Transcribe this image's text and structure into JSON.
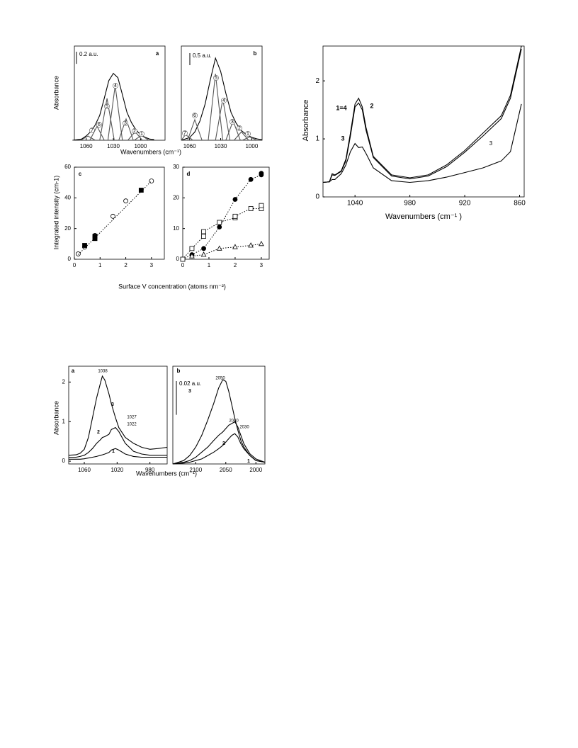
{
  "chart_data": [
    {
      "type": "line",
      "title": "a",
      "xlabel": "Wavenumbers (cm⁻¹)",
      "ylabel": "Absorbance",
      "scale_bar": {
        "value": 0.2,
        "label": "0.2 a.u."
      },
      "xlim": [
        1073,
        973
      ],
      "ylim": [
        0,
        1.55
      ],
      "xticks": [
        1060,
        1030,
        1000
      ],
      "series": [
        {
          "color": "#000000",
          "x": [
            1075,
            1065,
            1060,
            1055,
            1050,
            1045,
            1040,
            1035,
            1030,
            1025,
            1020,
            1015,
            1010,
            1005,
            1000,
            995,
            990,
            985
          ],
          "values": [
            0,
            0.02,
            0.07,
            0.14,
            0.25,
            0.41,
            0.69,
            0.98,
            1.1,
            1.03,
            0.75,
            0.46,
            0.29,
            0.17,
            0.09,
            0.05,
            0.02,
            0.01
          ]
        },
        {
          "name": "7",
          "color": "#555555",
          "x": [
            1066,
            1062,
            1058,
            1054,
            1050
          ],
          "values": [
            0,
            0.035,
            0.07,
            0.035,
            0
          ]
        },
        {
          "name": "6",
          "color": "#555555",
          "x": [
            1056,
            1052,
            1048,
            1044,
            1040
          ],
          "values": [
            0,
            0.115,
            0.23,
            0.115,
            0
          ]
        },
        {
          "name": "5",
          "color": "#555555",
          "x": [
            1045,
            1041,
            1037,
            1033,
            1029
          ],
          "values": [
            0,
            0.345,
            0.69,
            0.345,
            0
          ]
        },
        {
          "name": "4",
          "color": "#555555",
          "x": [
            1036,
            1032,
            1028,
            1024,
            1020
          ],
          "values": [
            0,
            0.45,
            0.9,
            0.45,
            0
          ]
        },
        {
          "name": "3",
          "color": "#555555",
          "x": [
            1024,
            1020,
            1016,
            1012,
            1008
          ],
          "values": [
            0,
            0.175,
            0.35,
            0.175,
            0
          ]
        },
        {
          "name": "2",
          "color": "#555555",
          "x": [
            1014,
            1010,
            1006,
            1002,
            998
          ],
          "values": [
            0,
            0.07,
            0.14,
            0.07,
            0
          ]
        },
        {
          "name": "1",
          "color": "#555555",
          "x": [
            1007,
            1003,
            999,
            995,
            991
          ],
          "values": [
            0,
            0.04,
            0.08,
            0.04,
            0
          ]
        }
      ]
    },
    {
      "type": "line",
      "title": "b",
      "scale_bar": {
        "value": 0.5,
        "label": "0.5 a.u."
      },
      "xlim": [
        1068,
        990
      ],
      "ylim": [
        0,
        3.9
      ],
      "xticks": [
        1060,
        1030,
        1000
      ],
      "series": [
        {
          "color": "#000000",
          "x": [
            1068,
            1060,
            1055,
            1050,
            1045,
            1040,
            1035,
            1030,
            1025,
            1020,
            1015,
            1010,
            1005,
            1000,
            995,
            990
          ],
          "values": [
            0,
            0.11,
            0.34,
            0.8,
            1.5,
            2.5,
            3.4,
            2.85,
            1.95,
            1.15,
            0.7,
            0.4,
            0.23,
            0.12,
            0.06,
            0.02
          ]
        },
        {
          "name": "7",
          "color": "#555555",
          "x": [
            1068,
            1066,
            1064,
            1060,
            1057
          ],
          "values": [
            0,
            0.115,
            0.23,
            0.115,
            0
          ]
        },
        {
          "name": "6",
          "color": "#555555",
          "x": [
            1062,
            1058.5,
            1055,
            1051.5,
            1048
          ],
          "values": [
            0,
            0.425,
            0.85,
            0.425,
            0
          ]
        },
        {
          "name": "5",
          "color": "#555555",
          "x": [
            1042,
            1038.5,
            1035,
            1031.5,
            1028
          ],
          "values": [
            0,
            1.375,
            2.75,
            1.375,
            0
          ]
        },
        {
          "name": "4",
          "color": "#555555",
          "x": [
            1035,
            1031.5,
            1028,
            1024.5,
            1021
          ],
          "values": [
            0,
            0.85,
            1.7,
            0.85,
            0
          ]
        },
        {
          "name": "3",
          "color": "#555555",
          "x": [
            1025,
            1021.5,
            1018,
            1014.5,
            1011
          ],
          "values": [
            0,
            0.4,
            0.8,
            0.4,
            0
          ]
        },
        {
          "name": "2",
          "color": "#555555",
          "x": [
            1017,
            1013.5,
            1010,
            1006.5,
            1003
          ],
          "values": [
            0,
            0.175,
            0.35,
            0.175,
            0
          ]
        },
        {
          "name": "1",
          "color": "#555555",
          "x": [
            1009,
            1005.5,
            1002,
            998.5,
            995
          ],
          "values": [
            0,
            0.07,
            0.14,
            0.07,
            0
          ]
        }
      ]
    },
    {
      "type": "scatter",
      "title": "c",
      "xlabel": "Surface V concentration (atoms nm⁻²)",
      "ylabel": "Integrated intensity (cm-1)",
      "xlim": [
        0,
        3.5
      ],
      "ylim": [
        0,
        60
      ],
      "xticks": [
        0,
        1,
        2,
        3
      ],
      "yticks": [
        0,
        20,
        40,
        60
      ],
      "series": [
        {
          "color": "#000000",
          "marker": "circle-open",
          "x": [
            0.15,
            0.4,
            0.8,
            1.5,
            2,
            3
          ],
          "values": [
            3.5,
            8,
            15.5,
            28,
            38,
            51
          ]
        },
        {
          "color": "#000000",
          "marker": "square-filled",
          "x": [
            0.4,
            0.8,
            0.8,
            2.6
          ],
          "values": [
            9,
            13.5,
            15,
            45
          ]
        },
        {
          "color": "#000000",
          "line": "dotted",
          "x": [
            0.15,
            3
          ],
          "values": [
            3,
            51
          ]
        }
      ]
    },
    {
      "type": "scatter",
      "title": "d",
      "xlim": [
        0,
        3.3
      ],
      "ylim": [
        0,
        30
      ],
      "xticks": [
        0,
        1,
        2,
        3
      ],
      "yticks": [
        0,
        10,
        20,
        30
      ],
      "series": [
        {
          "color": "#000000",
          "marker": "circle-filled",
          "line": "dotted",
          "x": [
            0,
            0.35,
            0.8,
            1.4,
            2,
            2.6,
            3,
            3
          ],
          "values": [
            0,
            1.5,
            3.5,
            10.5,
            19.5,
            26,
            27.5,
            28
          ]
        },
        {
          "color": "#000000",
          "marker": "square-open",
          "line": "dotted",
          "x": [
            0,
            0.35,
            0.8,
            0.8,
            1.4,
            2,
            2,
            2.6,
            3,
            3
          ],
          "values": [
            0,
            3.5,
            7.5,
            9,
            12,
            13.5,
            14,
            16.5,
            16.5,
            17.5
          ]
        },
        {
          "color": "#000000",
          "marker": "triangle-open",
          "line": "dotted",
          "x": [
            0.35,
            0.8,
            1.4,
            2,
            2.6,
            3
          ],
          "values": [
            1,
            1.5,
            3.5,
            4,
            4.5,
            5
          ]
        }
      ]
    },
    {
      "type": "line",
      "xlabel": "Wavenumbers (cm⁻¹ )",
      "ylabel": "Absorbance",
      "xlim": [
        1075,
        855
      ],
      "ylim": [
        0,
        2.6
      ],
      "xticks": [
        1040,
        980,
        920,
        860
      ],
      "yticks": [
        0,
        1,
        2
      ],
      "annotations": [
        "3"
      ],
      "series": [
        {
          "name": "1=4",
          "color": "#000000",
          "x": [
            1075,
            1068,
            1065,
            1062,
            1055,
            1050,
            1045,
            1040,
            1036,
            1032,
            1028,
            1020,
            1000,
            980,
            960,
            940,
            920,
            900,
            880,
            870,
            858
          ],
          "values": [
            0.25,
            0.26,
            0.4,
            0.38,
            0.45,
            0.65,
            1.1,
            1.6,
            1.7,
            1.55,
            1.2,
            0.7,
            0.38,
            0.33,
            0.38,
            0.55,
            0.8,
            1.1,
            1.4,
            1.75,
            2.6
          ]
        },
        {
          "name": "2",
          "color": "#000000",
          "x": [
            1075,
            1068,
            1065,
            1062,
            1055,
            1050,
            1045,
            1040,
            1036,
            1032,
            1028,
            1020,
            1000,
            980,
            960,
            940,
            920,
            900,
            880,
            870,
            858
          ],
          "values": [
            0.25,
            0.26,
            0.38,
            0.37,
            0.44,
            0.62,
            1.05,
            1.55,
            1.62,
            1.5,
            1.15,
            0.68,
            0.36,
            0.31,
            0.36,
            0.52,
            0.77,
            1.05,
            1.35,
            1.7,
            2.55
          ]
        },
        {
          "name": "3",
          "color": "#000000",
          "x": [
            1075,
            1068,
            1065,
            1062,
            1055,
            1050,
            1045,
            1040,
            1036,
            1032,
            1028,
            1020,
            1000,
            980,
            960,
            940,
            920,
            900,
            880,
            870,
            858
          ],
          "values": [
            0.25,
            0.26,
            0.3,
            0.3,
            0.4,
            0.55,
            0.78,
            0.92,
            0.85,
            0.86,
            0.75,
            0.5,
            0.28,
            0.25,
            0.28,
            0.34,
            0.42,
            0.5,
            0.62,
            0.78,
            1.6
          ]
        }
      ]
    },
    {
      "type": "line",
      "title": "a",
      "xlabel": "Wavenumbers (cm⁻¹)",
      "ylabel": "Absorbance",
      "xlim": [
        1079,
        959
      ],
      "ylim": [
        -0.07,
        2.4
      ],
      "xticks": [
        1060,
        1020,
        980
      ],
      "yticks": [
        0,
        1,
        2
      ],
      "annotations": [
        "1038",
        "1027",
        "1022"
      ],
      "series": [
        {
          "name": "3",
          "color": "#000000",
          "x": [
            1079,
            1070,
            1065,
            1060,
            1055,
            1050,
            1045,
            1040,
            1038,
            1035,
            1030,
            1027,
            1022,
            1018,
            1010,
            1000,
            990,
            980,
            970,
            959
          ],
          "values": [
            0.15,
            0.16,
            0.2,
            0.3,
            0.6,
            1.1,
            1.6,
            2.0,
            2.15,
            2.05,
            1.7,
            1.45,
            1.1,
            0.85,
            0.6,
            0.45,
            0.35,
            0.3,
            0.32,
            0.35
          ]
        },
        {
          "name": "2",
          "color": "#000000",
          "x": [
            1079,
            1070,
            1065,
            1060,
            1055,
            1050,
            1045,
            1040,
            1038,
            1035,
            1030,
            1027,
            1022,
            1018,
            1010,
            1000,
            990,
            980,
            970,
            959
          ],
          "values": [
            0.1,
            0.1,
            0.12,
            0.15,
            0.22,
            0.32,
            0.45,
            0.55,
            0.6,
            0.62,
            0.68,
            0.8,
            0.85,
            0.75,
            0.45,
            0.25,
            0.18,
            0.15,
            0.15,
            0.15
          ]
        },
        {
          "name": "1",
          "color": "#000000",
          "x": [
            1079,
            1070,
            1065,
            1060,
            1055,
            1050,
            1045,
            1040,
            1038,
            1035,
            1030,
            1027,
            1022,
            1018,
            1010,
            1000,
            990,
            980,
            970,
            959
          ],
          "values": [
            0.05,
            0.05,
            0.05,
            0.06,
            0.08,
            0.1,
            0.12,
            0.15,
            0.16,
            0.18,
            0.22,
            0.28,
            0.32,
            0.28,
            0.18,
            0.12,
            0.1,
            0.1,
            0.1,
            0.1
          ]
        }
      ]
    },
    {
      "type": "line",
      "title": "b",
      "scale_bar": {
        "value": 0.02,
        "label": "0.02 a.u."
      },
      "xlim": [
        2138,
        1985
      ],
      "ylim": [
        0,
        0.058
      ],
      "xticks": [
        2100,
        2050,
        2000
      ],
      "annotations": [
        "2050",
        "2040",
        "2030"
      ],
      "series": [
        {
          "name": "3",
          "color": "#000000",
          "x": [
            2138,
            2120,
            2110,
            2100,
            2090,
            2080,
            2070,
            2062,
            2055,
            2050,
            2045,
            2040,
            2035,
            2030,
            2025,
            2020,
            2010,
            2000,
            1985
          ],
          "values": [
            0,
            0.002,
            0.005,
            0.01,
            0.017,
            0.026,
            0.036,
            0.045,
            0.05,
            0.049,
            0.043,
            0.035,
            0.027,
            0.02,
            0.014,
            0.01,
            0.005,
            0.002,
            0.001
          ]
        },
        {
          "name": "2",
          "color": "#000000",
          "x": [
            2138,
            2120,
            2110,
            2100,
            2090,
            2080,
            2070,
            2062,
            2055,
            2050,
            2045,
            2040,
            2035,
            2030,
            2025,
            2020,
            2010,
            2000,
            1985
          ],
          "values": [
            0,
            0.001,
            0.002,
            0.004,
            0.007,
            0.01,
            0.014,
            0.017,
            0.019,
            0.021,
            0.023,
            0.024,
            0.025,
            0.022,
            0.017,
            0.012,
            0.006,
            0.003,
            0.001
          ]
        },
        {
          "name": "1",
          "color": "#000000",
          "x": [
            2138,
            2120,
            2110,
            2100,
            2090,
            2080,
            2070,
            2062,
            2055,
            2050,
            2045,
            2040,
            2035,
            2030,
            2025,
            2020,
            2010,
            2000,
            1985
          ],
          "values": [
            0,
            0.0005,
            0.001,
            0.002,
            0.003,
            0.005,
            0.007,
            0.009,
            0.011,
            0.013,
            0.015,
            0.017,
            0.018,
            0.016,
            0.012,
            0.009,
            0.005,
            0.002,
            0.001
          ]
        }
      ]
    }
  ]
}
